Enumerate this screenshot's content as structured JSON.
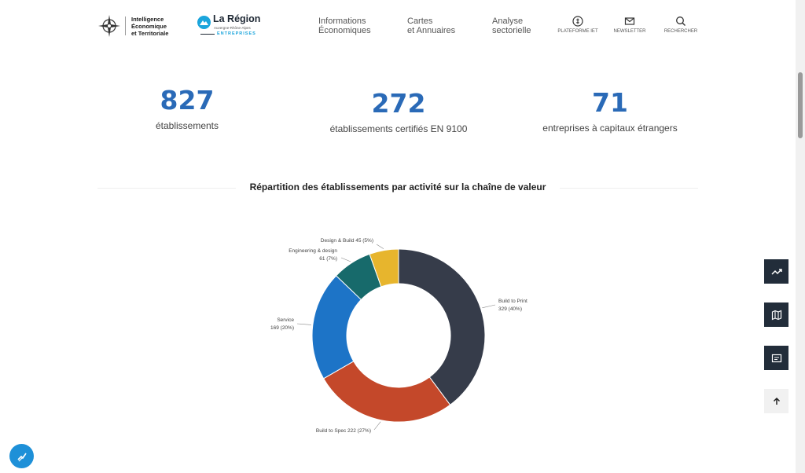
{
  "header": {
    "logo_iet": {
      "line1": "Intelligence",
      "line2": "Économique",
      "line3": "et Territoriale"
    },
    "logo_region": {
      "name": "La Région",
      "sub": "Auvergne-Rhône-Alpes",
      "tag": "ENTREPRISES"
    },
    "nav": [
      {
        "line1": "Informations",
        "line2": "Économiques"
      },
      {
        "line1": "Cartes",
        "line2": "et Annuaires"
      },
      {
        "line1": "Analyse",
        "line2": "sectorielle"
      }
    ],
    "icons": [
      {
        "label": "PLATEFORME IET",
        "icon": "plateforme-icon"
      },
      {
        "label": "NEWSLETTER",
        "icon": "mail-icon"
      },
      {
        "label": "RECHERCHER",
        "icon": "search-icon"
      }
    ]
  },
  "stats": [
    {
      "value": "827",
      "label": "établissements"
    },
    {
      "value": "272",
      "label": "établissements certifiés EN 9100"
    },
    {
      "value": "71",
      "label": "entreprises à capitaux étrangers"
    }
  ],
  "section": {
    "title": "Répartition des établissements par activité sur la chaîne de valeur"
  },
  "chart_data": {
    "type": "pie",
    "donut": true,
    "categories": [
      "Build to Print",
      "Build to Spec",
      "Service",
      "Engineering & design",
      "Design & Build"
    ],
    "values": [
      329,
      222,
      169,
      61,
      45
    ],
    "labels": [
      "Build to Print\n329 (40%)",
      "Build to Spec 222 (27%)",
      "Service\n169 (20%)",
      "Engineering & design\n61 (7%)",
      "Design & Build 45 (5%)"
    ],
    "colors": [
      "#363c4a",
      "#c4482a",
      "#1d74c7",
      "#176a6b",
      "#e7b52d"
    ]
  },
  "side_buttons": [
    "trend-icon",
    "map-icon",
    "document-icon",
    "arrow-up-icon"
  ],
  "colors": {
    "accent": "#2a6ab7",
    "dark": "#222d3a",
    "region_blue": "#1ba5dc"
  }
}
